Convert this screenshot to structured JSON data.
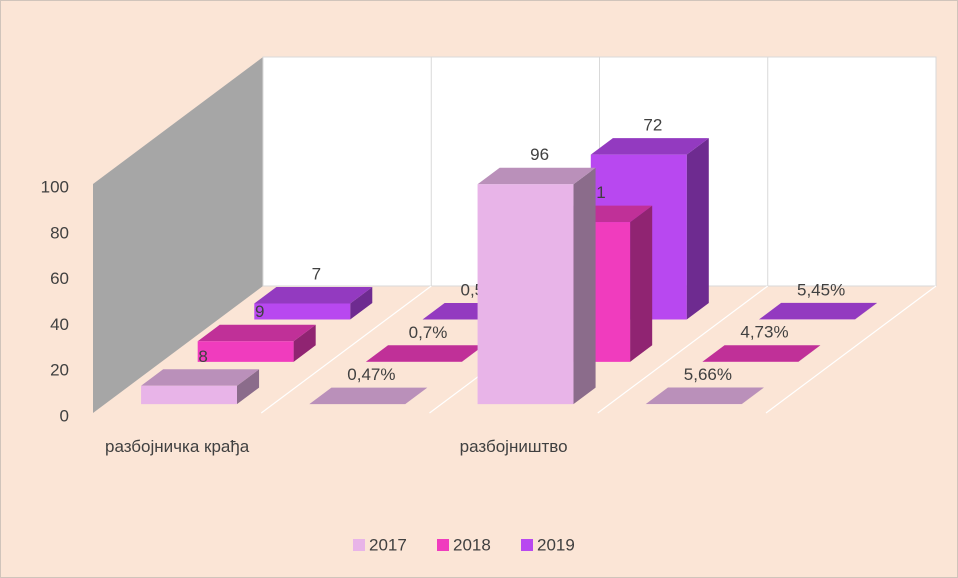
{
  "chart_data": {
    "type": "bar3d",
    "categories": [
      "разбојничка крађа",
      null,
      "разбојништво",
      null
    ],
    "series": [
      {
        "name": "2017",
        "color": "#e8b4e8",
        "values": [
          8,
          0.0047,
          96,
          0.0566
        ],
        "value_labels": [
          "8",
          "0,47%",
          "96",
          "5,66%"
        ]
      },
      {
        "name": "2018",
        "color": "#f03cbe",
        "values": [
          9,
          0.007,
          61,
          0.0473
        ],
        "value_labels": [
          "9",
          "0,7%",
          "61",
          "4,73%"
        ]
      },
      {
        "name": "2019",
        "color": "#b848f0",
        "values": [
          7,
          0.0053,
          72,
          0.0545
        ],
        "value_labels": [
          "7",
          "0,53%",
          "72",
          "5,45%"
        ]
      }
    ],
    "ylim": [
      0,
      100
    ],
    "yticks": [
      0,
      20,
      40,
      60,
      80,
      100
    ],
    "legend": "bottom"
  }
}
